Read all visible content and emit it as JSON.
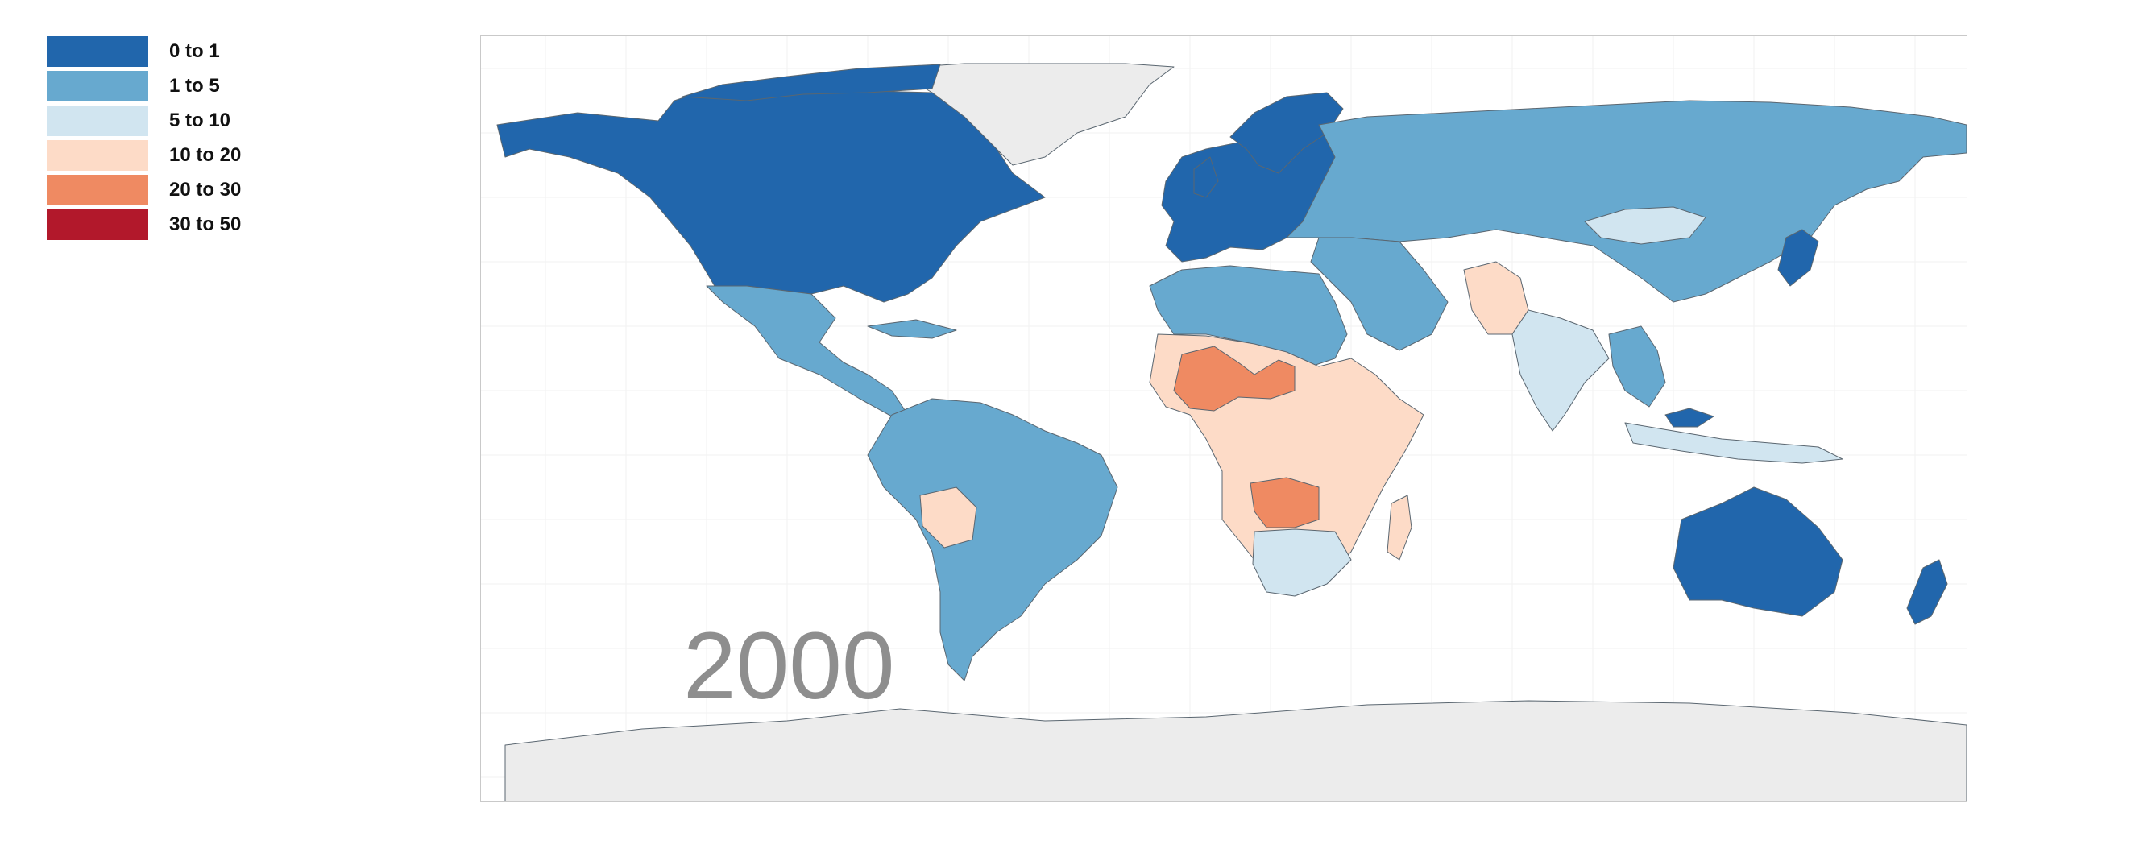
{
  "legend": {
    "items": [
      {
        "label": "0 to 1",
        "color": "#2166ac"
      },
      {
        "label": "1 to 5",
        "color": "#67a9cf"
      },
      {
        "label": "5 to 10",
        "color": "#d1e5f0"
      },
      {
        "label": "10 to 20",
        "color": "#fddbc7"
      },
      {
        "label": "20 to 30",
        "color": "#ef8a62"
      },
      {
        "label": "30 to 50",
        "color": "#b2182b"
      }
    ]
  },
  "year": "2000",
  "colors": {
    "no_data": "#ececec",
    "border": "#5a6670",
    "grid": "#f2f2f2",
    "frame": "#c9c9c9"
  }
}
